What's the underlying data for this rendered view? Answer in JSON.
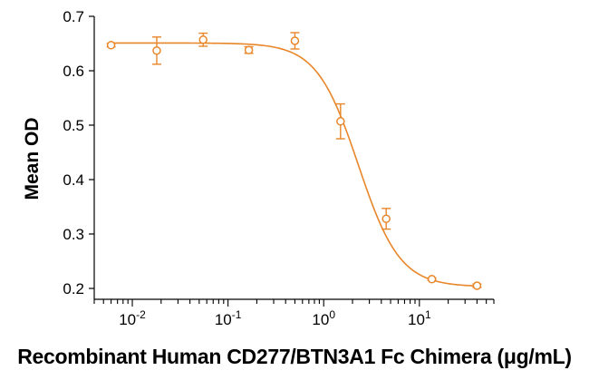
{
  "chart_data": {
    "type": "scatter",
    "xlabel": "Recombinant Human CD277/BTN3A1 Fc Chimera (μg/mL)",
    "ylabel": "Mean OD",
    "xscale": "log",
    "xlim": [
      0.004,
      60
    ],
    "ylim": [
      0.18,
      0.7
    ],
    "grid": false,
    "color": "#E8862A",
    "yticks": [
      0.2,
      0.3,
      0.4,
      0.5,
      0.6,
      0.7
    ],
    "ytick_labels": [
      "0.2",
      "0.3",
      "0.4",
      "0.5",
      "0.6",
      "0.7"
    ],
    "xticks": [
      0.01,
      0.1,
      1,
      10
    ],
    "xtick_labels": [
      {
        "base": "10",
        "exp": "-2"
      },
      {
        "base": "10",
        "exp": "-1"
      },
      {
        "base": "10",
        "exp": "0"
      },
      {
        "base": "10",
        "exp": "1"
      }
    ],
    "series": [
      {
        "points": [
          {
            "x": 0.006,
            "y": 0.647,
            "err": 0.003
          },
          {
            "x": 0.018,
            "y": 0.637,
            "err": 0.025
          },
          {
            "x": 0.055,
            "y": 0.657,
            "err": 0.012
          },
          {
            "x": 0.165,
            "y": 0.638,
            "err": 0.006
          },
          {
            "x": 0.5,
            "y": 0.655,
            "err": 0.015
          },
          {
            "x": 1.5,
            "y": 0.507,
            "err": 0.032
          },
          {
            "x": 4.5,
            "y": 0.328,
            "err": 0.019
          },
          {
            "x": 13.5,
            "y": 0.217,
            "err": 0.002
          },
          {
            "x": 40,
            "y": 0.205,
            "err": 0.003
          }
        ],
        "fit": {
          "model": "4PL",
          "top": 0.651,
          "bottom": 0.203,
          "ec50": 2.3,
          "hill": 2.0
        }
      }
    ]
  }
}
